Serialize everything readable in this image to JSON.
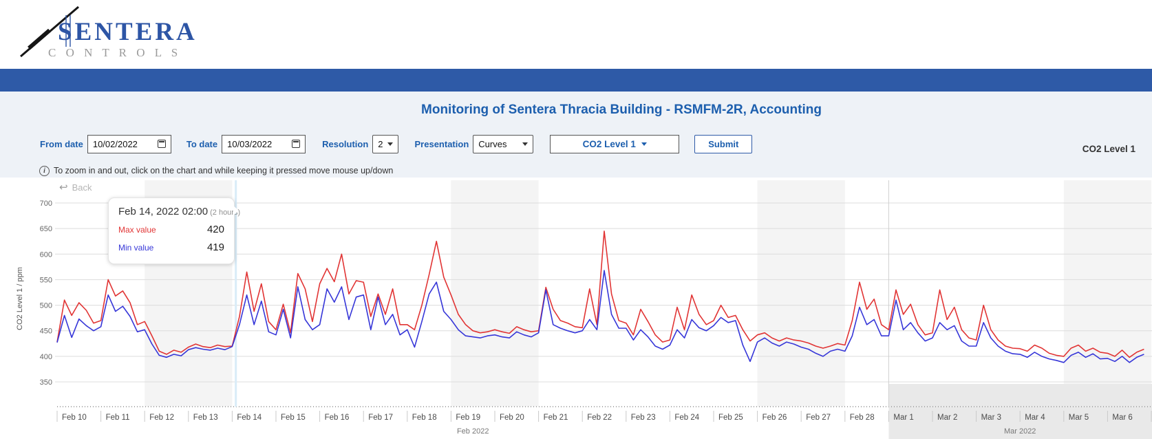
{
  "logo": {
    "line1": "SENTERA",
    "line2": "C O N T R O L S"
  },
  "nav": {
    "items": []
  },
  "title": "Monitoring of Sentera Thracia Building - RSMFM-2R, Accounting",
  "filters": {
    "from_label": "From date",
    "from_value": "10/02/2022",
    "to_label": "To date",
    "to_value": "10/03/2022",
    "resolution_label": "Resolution",
    "resolution_value": "2",
    "presentation_label": "Presentation",
    "presentation_value": "Curves",
    "series_dropdown_label": "CO2 Level 1",
    "submit_label": "Submit"
  },
  "legend_right": "CO2 Level 1",
  "info_text": "To zoom in and out, click on the chart and while keeping it pressed move mouse up/down",
  "chart_ui": {
    "back_label": "Back",
    "back_icon": "↩",
    "y_axis_title": "CO2 Level 1 / ppm"
  },
  "tooltip": {
    "date": "Feb 14, 2022 02:00",
    "duration": "(2 hours)",
    "max_label": "Max value",
    "max_value": "420",
    "min_label": "Min value",
    "min_value": "419"
  },
  "colors": {
    "navbar_blue": "#2e5aa7",
    "title_blue": "#1d5fae",
    "max_line": "#e13434",
    "min_line": "#3636d8",
    "weekend_band": "#f4f4f4",
    "month_strip": "#e9e9e9",
    "gridline": "#dcdcdc",
    "crosshair": "#d9ecf8"
  },
  "chart_data": {
    "type": "line",
    "title": "CO2 Level 1",
    "ylabel": "CO2 Level 1 / ppm",
    "ylim": [
      350,
      700
    ],
    "yticks": [
      700,
      650,
      600,
      550,
      500,
      450,
      400,
      350
    ],
    "points_per_day": 6,
    "resolution_note": "values sampled ~every 4h; source chart resolution 2 hours",
    "day_labels": [
      "Feb 10",
      "Feb 11",
      "Feb 12",
      "Feb 13",
      "Feb 14",
      "Feb 15",
      "Feb 16",
      "Feb 17",
      "Feb 18",
      "Feb 19",
      "Feb 20",
      "Feb 21",
      "Feb 22",
      "Feb 23",
      "Feb 24",
      "Feb 25",
      "Feb 26",
      "Feb 27",
      "Feb 28",
      "Mar 1",
      "Mar 2",
      "Mar 3",
      "Mar 4",
      "Mar 5",
      "Mar 6"
    ],
    "month_labels": [
      "Feb 2022",
      "Mar 2022"
    ],
    "month_boundaries_days": [
      0,
      19,
      25
    ],
    "weekend_bands_days": [
      [
        2,
        4
      ],
      [
        9,
        11
      ],
      [
        16,
        18
      ],
      [
        23,
        25
      ]
    ],
    "crosshair_day": 4.083,
    "legend_position": "top-right",
    "grid": true,
    "series": [
      {
        "name": "Max value",
        "color": "#e13434",
        "values": [
          428,
          510,
          480,
          505,
          490,
          465,
          470,
          550,
          518,
          528,
          505,
          462,
          468,
          440,
          410,
          404,
          412,
          408,
          418,
          424,
          419,
          417,
          422,
          419,
          420,
          478,
          565,
          488,
          542,
          468,
          452,
          502,
          446,
          562,
          532,
          468,
          542,
          572,
          546,
          600,
          522,
          548,
          545,
          478,
          522,
          482,
          532,
          462,
          462,
          452,
          500,
          560,
          625,
          555,
          520,
          482,
          462,
          450,
          446,
          448,
          452,
          448,
          445,
          458,
          452,
          448,
          450,
          535,
          492,
          470,
          465,
          458,
          456,
          532,
          462,
          645,
          522,
          470,
          465,
          442,
          492,
          468,
          442,
          428,
          432,
          496,
          452,
          520,
          482,
          462,
          470,
          500,
          476,
          480,
          452,
          430,
          442,
          446,
          436,
          430,
          436,
          432,
          430,
          426,
          420,
          416,
          420,
          425,
          422,
          470,
          545,
          492,
          512,
          462,
          452,
          530,
          482,
          502,
          462,
          442,
          446,
          530,
          472,
          496,
          452,
          436,
          432,
          500,
          452,
          432,
          420,
          416,
          415,
          410,
          422,
          416,
          406,
          402,
          400,
          416,
          422,
          410,
          416,
          408,
          406,
          400,
          412,
          398,
          408,
          414
        ]
      },
      {
        "name": "Min value",
        "color": "#3636d8",
        "values": [
          427,
          480,
          437,
          473,
          460,
          450,
          458,
          520,
          488,
          498,
          478,
          448,
          452,
          424,
          402,
          398,
          404,
          401,
          413,
          417,
          414,
          412,
          416,
          413,
          419,
          462,
          520,
          462,
          508,
          448,
          442,
          492,
          436,
          536,
          472,
          452,
          462,
          532,
          506,
          536,
          472,
          516,
          520,
          452,
          516,
          462,
          482,
          442,
          452,
          418,
          468,
          522,
          545,
          488,
          472,
          452,
          440,
          438,
          436,
          440,
          442,
          438,
          436,
          448,
          442,
          438,
          446,
          530,
          462,
          455,
          450,
          446,
          450,
          472,
          452,
          568,
          482,
          455,
          455,
          432,
          452,
          438,
          420,
          414,
          422,
          452,
          436,
          472,
          456,
          450,
          460,
          476,
          466,
          470,
          422,
          390,
          428,
          436,
          426,
          420,
          428,
          424,
          418,
          414,
          406,
          400,
          410,
          414,
          410,
          440,
          496,
          462,
          472,
          440,
          440,
          510,
          452,
          466,
          446,
          430,
          436,
          466,
          452,
          460,
          430,
          420,
          420,
          466,
          436,
          420,
          410,
          405,
          404,
          398,
          408,
          400,
          395,
          392,
          388,
          402,
          408,
          398,
          405,
          395,
          396,
          390,
          400,
          388,
          398,
          404
        ]
      }
    ]
  }
}
